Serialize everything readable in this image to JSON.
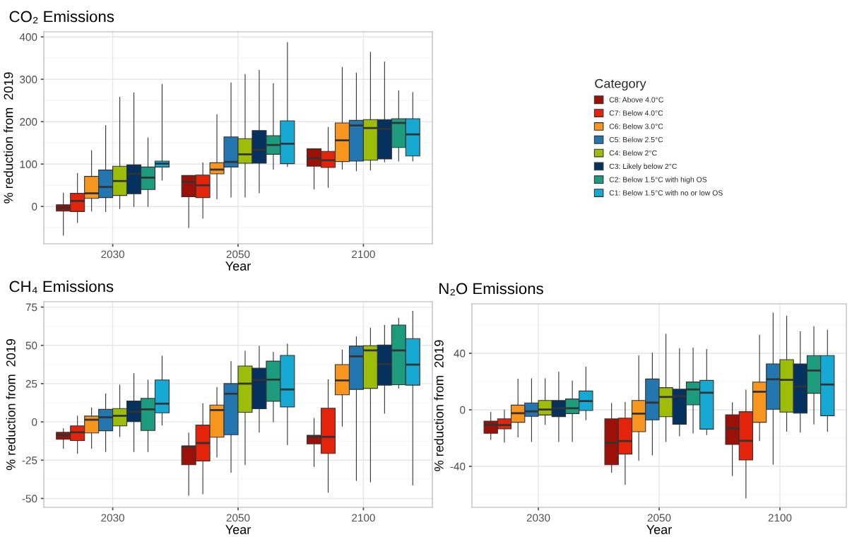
{
  "chart_data": [
    {
      "type": "box",
      "title": "CO₂ Emissions",
      "xlabel": "Year",
      "ylabel": "% reduction from  2019",
      "categories": [
        "2030",
        "2050",
        "2100"
      ],
      "ylim": [
        -88,
        412
      ],
      "yticks": [
        0,
        100,
        200,
        300,
        400
      ],
      "grid": true,
      "legend": "right",
      "legend_title": "Category",
      "series": [
        {
          "name": "C8: Above 4.0°C",
          "color": "#9b1107",
          "boxes": [
            {
              "low": -68,
              "q1": -11,
              "median": -3,
              "q3": 4,
              "high": 32
            },
            {
              "low": -50,
              "q1": 23,
              "median": 58,
              "q3": 73,
              "high": 73
            },
            {
              "low": 41,
              "q1": 95,
              "median": 114,
              "q3": 136,
              "high": 136
            }
          ]
        },
        {
          "name": "C7: Below 4.0°C",
          "color": "#e4230b",
          "boxes": [
            {
              "low": -38,
              "q1": -12,
              "median": 13,
              "q3": 31,
              "high": 78
            },
            {
              "low": -28,
              "q1": 21,
              "median": 50,
              "q3": 74,
              "high": 103
            },
            {
              "low": 45,
              "q1": 92,
              "median": 109,
              "q3": 130,
              "high": 187
            }
          ]
        },
        {
          "name": "C6: Below 3.0°C",
          "color": "#f6961e",
          "boxes": [
            {
              "low": -11,
              "q1": 19,
              "median": 31,
              "q3": 71,
              "high": 132
            },
            {
              "low": 18,
              "q1": 77,
              "median": 87,
              "q3": 103,
              "high": 217
            },
            {
              "low": 88,
              "q1": 106,
              "median": 156,
              "q3": 197,
              "high": 328
            }
          ]
        },
        {
          "name": "C5: Below 2.5°C",
          "color": "#2476b0",
          "boxes": [
            {
              "low": -12,
              "q1": 21,
              "median": 46,
              "q3": 86,
              "high": 191
            },
            {
              "low": 22,
              "q1": 93,
              "median": 105,
              "q3": 164,
              "high": 292
            },
            {
              "low": 84,
              "q1": 107,
              "median": 191,
              "q3": 203,
              "high": 315
            }
          ]
        },
        {
          "name": "C4: Below 2°C",
          "color": "#9dbd0a",
          "boxes": [
            {
              "low": -5,
              "q1": 26,
              "median": 60,
              "q3": 95,
              "high": 258
            },
            {
              "low": 22,
              "q1": 102,
              "median": 123,
              "q3": 160,
              "high": 312
            },
            {
              "low": 86,
              "q1": 109,
              "median": 185,
              "q3": 205,
              "high": 364
            }
          ]
        },
        {
          "name": "C3: Likely below 2°C",
          "color": "#05315f",
          "boxes": [
            {
              "low": 0,
              "q1": 30,
              "median": 77,
              "q3": 98,
              "high": 268
            },
            {
              "low": 32,
              "q1": 102,
              "median": 134,
              "q3": 179,
              "high": 321
            },
            {
              "low": 105,
              "q1": 112,
              "median": 183,
              "q3": 205,
              "high": 341
            }
          ]
        },
        {
          "name": "C2: Below 1.5°C with high OS",
          "color": "#1c9c7c",
          "boxes": [
            {
              "low": 0,
              "q1": 40,
              "median": 68,
              "q3": 93,
              "high": 162
            },
            {
              "low": 88,
              "q1": 123,
              "median": 145,
              "q3": 167,
              "high": 290
            },
            {
              "low": 107,
              "q1": 139,
              "median": 197,
              "q3": 207,
              "high": 273
            }
          ]
        },
        {
          "name": "C1: Below 1.5°C with no or low OS",
          "color": "#16a9d3",
          "boxes": [
            {
              "low": 62,
              "q1": 93,
              "median": 101,
              "q3": 107,
              "high": 288
            },
            {
              "low": 94,
              "q1": 101,
              "median": 148,
              "q3": 202,
              "high": 387
            },
            {
              "low": 107,
              "q1": 119,
              "median": 170,
              "q3": 207,
              "high": 269
            }
          ]
        }
      ]
    },
    {
      "type": "box",
      "title": "CH₄ Emissions",
      "xlabel": "Year",
      "ylabel": "% reduction from  2019",
      "categories": [
        "2030",
        "2050",
        "2100"
      ],
      "ylim": [
        -55.8,
        78.5
      ],
      "yticks": [
        -50,
        -25,
        0,
        25,
        50,
        75
      ],
      "grid": true,
      "series": [
        {
          "color": "#9b1107",
          "boxes": [
            {
              "low": -17.3,
              "q1": -11.4,
              "median": -8.6,
              "q3": -6.8,
              "high": -4.4
            },
            {
              "low": -48,
              "q1": -28,
              "median": -16,
              "q3": -15.9,
              "high": -7.2
            },
            {
              "low": -29.2,
              "q1": -14.3,
              "median": -9.6,
              "q3": -8.7,
              "high": 2.4
            }
          ]
        },
        {
          "color": "#e4230b",
          "boxes": [
            {
              "low": -20.6,
              "q1": -12.2,
              "median": -6.8,
              "q3": -2.6,
              "high": 3.8
            },
            {
              "low": -47,
              "q1": -25.5,
              "median": -13.8,
              "q3": -2.1,
              "high": 11.9
            },
            {
              "low": -46,
              "q1": -20.6,
              "median": -9.8,
              "q3": 8.9,
              "high": 27.6
            }
          ]
        },
        {
          "color": "#f6961e",
          "boxes": [
            {
              "low": -17.3,
              "q1": -7.2,
              "median": 1.4,
              "q3": 3.8,
              "high": 9.3
            },
            {
              "low": -23,
              "q1": -10,
              "median": 7.7,
              "q3": 11,
              "high": 22.6
            },
            {
              "low": -2.8,
              "q1": 17.7,
              "median": 27.1,
              "q3": 37.4,
              "high": 47
            }
          ]
        },
        {
          "color": "#2476b0",
          "boxes": [
            {
              "low": -19.4,
              "q1": -5.8,
              "median": 3,
              "q3": 8.2,
              "high": 18.4
            },
            {
              "low": -32.9,
              "q1": -8.4,
              "median": 18.4,
              "q3": 25,
              "high": 39.5
            },
            {
              "low": -38.3,
              "q1": 21.2,
              "median": 42.8,
              "q3": 49.5,
              "high": 55.6
            }
          ]
        },
        {
          "color": "#9dbd0a",
          "boxes": [
            {
              "low": -9.6,
              "q1": -2.6,
              "median": 4,
              "q3": 8.7,
              "high": 24.1
            },
            {
              "low": -28,
              "q1": 6.3,
              "median": 25,
              "q3": 36.5,
              "high": 46.3
            },
            {
              "low": -39.2,
              "q1": 21.9,
              "median": 46.7,
              "q3": 49.8,
              "high": 61.4
            }
          ]
        },
        {
          "color": "#05315f",
          "boxes": [
            {
              "low": -19.4,
              "q1": 0.2,
              "median": 6.6,
              "q3": 13.6,
              "high": 31.6
            },
            {
              "low": -6.8,
              "q1": 8.6,
              "median": 27.4,
              "q3": 35.1,
              "high": 49.5
            },
            {
              "low": 5.6,
              "q1": 24,
              "median": 37.8,
              "q3": 50.2,
              "high": 63.1
            }
          ]
        },
        {
          "color": "#1c9c7c",
          "boxes": [
            {
              "low": -19.4,
              "q1": -5.6,
              "median": 8.2,
              "q3": 15.4,
              "high": 27.4
            },
            {
              "low": 0,
              "q1": 13.5,
              "median": 27.6,
              "q3": 39.7,
              "high": 45.5
            },
            {
              "low": 22,
              "q1": 24.3,
              "median": 46.7,
              "q3": 63.3,
              "high": 67.7
            }
          ]
        },
        {
          "color": "#16a9d3",
          "boxes": [
            {
              "low": -2.1,
              "q1": 5.9,
              "median": 11.9,
              "q3": 27.4,
              "high": 43
            },
            {
              "low": -14.9,
              "q1": 9.8,
              "median": 21.2,
              "q3": 43.4,
              "high": 50.9
            },
            {
              "low": -41.3,
              "q1": 24,
              "median": 37.4,
              "q3": 54.4,
              "high": 72.4
            }
          ]
        }
      ]
    },
    {
      "type": "box",
      "title": "N₂O Emissions",
      "xlabel": "Year",
      "ylabel": "% reduction from  2019",
      "categories": [
        "2030",
        "2050",
        "2100"
      ],
      "ylim": [
        -69,
        75
      ],
      "yticks": [
        -40,
        0,
        40
      ],
      "grid": true,
      "series": [
        {
          "color": "#9b1107",
          "boxes": [
            {
              "low": -21,
              "q1": -16.6,
              "median": -10.6,
              "q3": -8,
              "high": -1.8
            },
            {
              "low": -44.2,
              "q1": -38.9,
              "median": -23.4,
              "q3": -6.4,
              "high": 4.6
            },
            {
              "low": -46.6,
              "q1": -24.5,
              "median": -13.2,
              "q3": -3.5,
              "high": 5.1
            }
          ]
        },
        {
          "color": "#e4230b",
          "boxes": [
            {
              "low": -23,
              "q1": -13.5,
              "median": -10.8,
              "q3": -6.4,
              "high": 0
            },
            {
              "low": -52.8,
              "q1": -31.3,
              "median": -22.1,
              "q3": -5.9,
              "high": 5.3
            },
            {
              "low": -62.5,
              "q1": -35.5,
              "median": -21.9,
              "q3": -1.3,
              "high": 14.1
            }
          ]
        },
        {
          "color": "#f6961e",
          "boxes": [
            {
              "low": -19.2,
              "q1": -8.8,
              "median": -2.4,
              "q3": 3.3,
              "high": 21.8
            },
            {
              "low": -35.8,
              "q1": -15.5,
              "median": -2.7,
              "q3": 6.6,
              "high": 38.2
            },
            {
              "low": -21.9,
              "q1": -8.8,
              "median": 12.8,
              "q3": 19.6,
              "high": 52.8
            }
          ]
        },
        {
          "color": "#2476b0",
          "boxes": [
            {
              "low": -22.5,
              "q1": -4.6,
              "median": -1.1,
              "q3": 4.9,
              "high": 22.1
            },
            {
              "low": -32,
              "q1": -7.1,
              "median": 5.1,
              "q3": 21.8,
              "high": 40.2
            },
            {
              "low": -38.6,
              "q1": 0.4,
              "median": 21.6,
              "q3": 32.5,
              "high": 68.6
            }
          ]
        },
        {
          "color": "#9dbd0a",
          "boxes": [
            {
              "low": -10.4,
              "q1": -3.7,
              "median": 0.2,
              "q3": 6.6,
              "high": 22.1
            },
            {
              "low": -22.5,
              "q1": -4.9,
              "median": 9.1,
              "q3": 15.7,
              "high": 53.6
            },
            {
              "low": -15.2,
              "q1": -1.6,
              "median": 21.2,
              "q3": 35.5,
              "high": 66.4
            }
          ]
        },
        {
          "color": "#05315f",
          "boxes": [
            {
              "low": -22.5,
              "q1": -4.8,
              "median": 1.1,
              "q3": 6.6,
              "high": 26.7
            },
            {
              "low": -18.5,
              "q1": -10.2,
              "median": 9.7,
              "q3": 14.6,
              "high": 43.3
            },
            {
              "low": -15.9,
              "q1": -2.4,
              "median": 16.5,
              "q3": 32.5,
              "high": 55.4
            }
          ]
        },
        {
          "color": "#1c9c7c",
          "boxes": [
            {
              "low": -22.5,
              "q1": -2.7,
              "median": 1.1,
              "q3": 7.7,
              "high": 20.5
            },
            {
              "low": -16.5,
              "q1": 3.5,
              "median": 14.4,
              "q3": 19.7,
              "high": 43.7
            },
            {
              "low": -10.1,
              "q1": 11.7,
              "median": 27.8,
              "q3": 38.4,
              "high": 59
            }
          ]
        },
        {
          "color": "#16a9d3",
          "boxes": [
            {
              "low": -7.1,
              "q1": -0.5,
              "median": 6.2,
              "q3": 13.3,
              "high": 30.3
            },
            {
              "low": -17.6,
              "q1": -13.7,
              "median": 12.1,
              "q3": 20.8,
              "high": 42.8
            },
            {
              "low": -15.4,
              "q1": -4.2,
              "median": 17.9,
              "q3": 38.4,
              "high": 56.5
            }
          ]
        }
      ]
    }
  ]
}
